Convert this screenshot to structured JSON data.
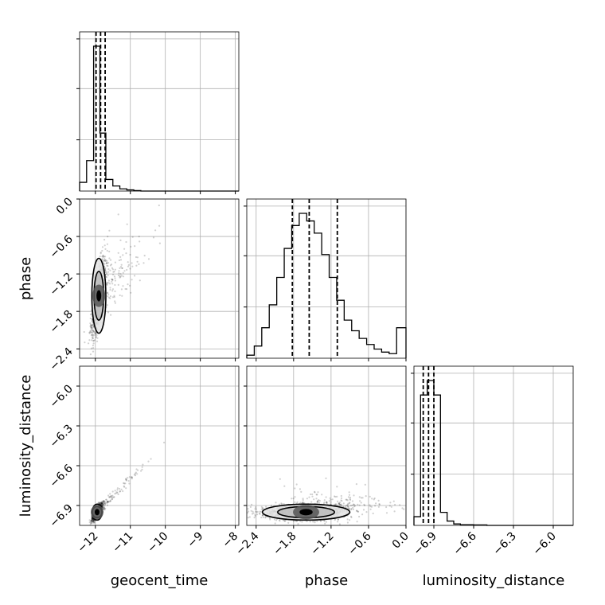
{
  "chart_data": {
    "type": "corner",
    "parameters": [
      "geocent_time",
      "phase",
      "luminosity_distance"
    ],
    "axes": {
      "geocent_time": {
        "label": "geocent_time",
        "lim": [
          -12.45,
          -7.9
        ],
        "ticks": [
          -12,
          -11,
          -10,
          -9,
          -8
        ],
        "tick_labels": [
          "−12",
          "−11",
          "−10",
          "−9",
          "−8"
        ]
      },
      "phase": {
        "label": "phase",
        "lim": [
          -2.55,
          0.0
        ],
        "ticks": [
          -2.4,
          -1.8,
          -1.2,
          -0.6,
          0.0
        ],
        "tick_labels": [
          "−2.4",
          "−1.8",
          "−1.2",
          "−0.6",
          "0.0"
        ]
      },
      "luminosity_distance": {
        "label": "luminosity_distance",
        "lim": [
          -7.05,
          -5.85
        ],
        "ticks": [
          -6.9,
          -6.6,
          -6.3,
          -6.0
        ],
        "tick_labels": [
          "−6.9",
          "−6.6",
          "−6.3",
          "−6.0"
        ]
      }
    },
    "grid": true,
    "histograms": [
      {
        "parameter": "geocent_time",
        "bin_edges": [
          -12.45,
          -12.25,
          -12.05,
          -11.87,
          -11.7,
          -11.5,
          -11.3,
          -11.1,
          -10.9,
          -10.7,
          -10.5
        ],
        "counts": [
          0.06,
          0.21,
          1.0,
          0.4,
          0.08,
          0.035,
          0.015,
          0.008,
          0.003,
          0.0
        ],
        "quantiles": [
          -11.98,
          -11.85,
          -11.72
        ]
      },
      {
        "parameter": "phase",
        "bin_edges": [
          -2.55,
          -2.43,
          -2.31,
          -2.19,
          -2.07,
          -1.95,
          -1.83,
          -1.71,
          -1.59,
          -1.47,
          -1.35,
          -1.23,
          -1.11,
          -0.99,
          -0.87,
          -0.75,
          -0.63,
          -0.51,
          -0.39,
          -0.27,
          -0.15,
          -0.03,
          0.0
        ],
        "counts": [
          0.02,
          0.08,
          0.2,
          0.35,
          0.53,
          0.72,
          0.87,
          0.95,
          0.9,
          0.82,
          0.68,
          0.53,
          0.38,
          0.25,
          0.18,
          0.13,
          0.09,
          0.06,
          0.04,
          0.03,
          0.2,
          0.2
        ],
        "quantiles": [
          -1.82,
          -1.55,
          -1.1
        ]
      },
      {
        "parameter": "luminosity_distance",
        "bin_edges": [
          -7.05,
          -7.0,
          -6.95,
          -6.9,
          -6.85,
          -6.8,
          -6.75,
          -6.7,
          -6.6,
          -6.5,
          -6.4
        ],
        "counts": [
          0.06,
          0.9,
          1.0,
          0.9,
          0.09,
          0.03,
          0.01,
          0.005,
          0.003,
          0.0
        ],
        "quantiles": [
          -6.98,
          -6.94,
          -6.9
        ]
      }
    ],
    "scatter_samples": {
      "phase_vs_geocent_time": {
        "center": [
          -11.9,
          -1.55
        ],
        "spread": [
          0.1,
          0.3
        ],
        "correlation": 0.7
      },
      "luminosity_distance_vs_geocent_time": {
        "center": [
          -11.95,
          -6.95
        ],
        "spread": [
          0.07,
          0.03
        ],
        "correlation": 0.8
      },
      "luminosity_distance_vs_phase": {
        "center": [
          -1.6,
          -6.95
        ],
        "spread": [
          0.35,
          0.03
        ],
        "correlation": 0.05
      }
    }
  }
}
